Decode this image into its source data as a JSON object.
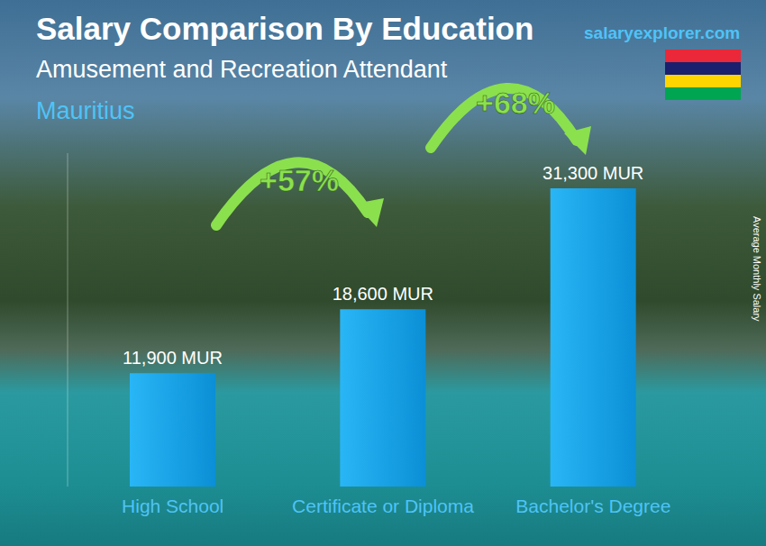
{
  "chart_data": {
    "type": "bar",
    "title": "Salary Comparison By Education",
    "subtitle": "Amusement and Recreation Attendant",
    "location": "Mauritius",
    "source": "salaryexplorer.com",
    "ylabel": "Average Monthly Salary",
    "categories": [
      "High School",
      "Certificate or Diploma",
      "Bachelor's Degree"
    ],
    "values": [
      11900,
      18600,
      31300
    ],
    "value_labels": [
      "11,900 MUR",
      "18,600 MUR",
      "31,300 MUR"
    ],
    "data_labels": true,
    "annotations": [
      "+57%",
      "+68%"
    ],
    "color": "#29b6f6",
    "ylim": [
      0,
      35000
    ],
    "tick_labels": false,
    "grid": false
  }
}
